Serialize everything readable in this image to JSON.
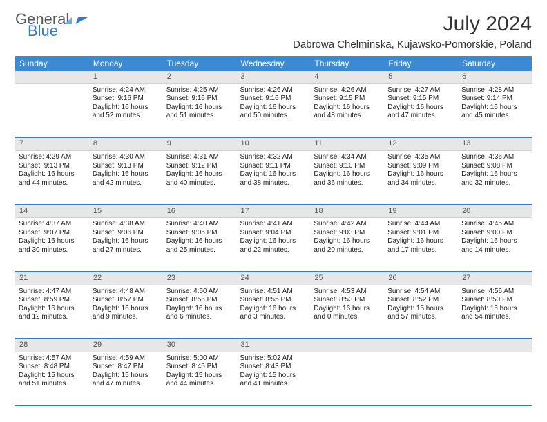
{
  "header": {
    "logo_general": "General",
    "logo_blue": "Blue",
    "month_title": "July 2024",
    "location": "Dabrowa Chelminska, Kujawsko-Pomorskie, Poland"
  },
  "colors": {
    "header_bg": "#3b8bd4",
    "divider": "#2e7cd6",
    "daynum_bg": "#e7e7e7",
    "text": "#222222"
  },
  "weekdays": [
    "Sunday",
    "Monday",
    "Tuesday",
    "Wednesday",
    "Thursday",
    "Friday",
    "Saturday"
  ],
  "weeks": [
    {
      "nums": [
        "",
        "1",
        "2",
        "3",
        "4",
        "5",
        "6"
      ],
      "cells": [
        "",
        "Sunrise: 4:24 AM\nSunset: 9:16 PM\nDaylight: 16 hours and 52 minutes.",
        "Sunrise: 4:25 AM\nSunset: 9:16 PM\nDaylight: 16 hours and 51 minutes.",
        "Sunrise: 4:26 AM\nSunset: 9:16 PM\nDaylight: 16 hours and 50 minutes.",
        "Sunrise: 4:26 AM\nSunset: 9:15 PM\nDaylight: 16 hours and 48 minutes.",
        "Sunrise: 4:27 AM\nSunset: 9:15 PM\nDaylight: 16 hours and 47 minutes.",
        "Sunrise: 4:28 AM\nSunset: 9:14 PM\nDaylight: 16 hours and 45 minutes."
      ]
    },
    {
      "nums": [
        "7",
        "8",
        "9",
        "10",
        "11",
        "12",
        "13"
      ],
      "cells": [
        "Sunrise: 4:29 AM\nSunset: 9:13 PM\nDaylight: 16 hours and 44 minutes.",
        "Sunrise: 4:30 AM\nSunset: 9:13 PM\nDaylight: 16 hours and 42 minutes.",
        "Sunrise: 4:31 AM\nSunset: 9:12 PM\nDaylight: 16 hours and 40 minutes.",
        "Sunrise: 4:32 AM\nSunset: 9:11 PM\nDaylight: 16 hours and 38 minutes.",
        "Sunrise: 4:34 AM\nSunset: 9:10 PM\nDaylight: 16 hours and 36 minutes.",
        "Sunrise: 4:35 AM\nSunset: 9:09 PM\nDaylight: 16 hours and 34 minutes.",
        "Sunrise: 4:36 AM\nSunset: 9:08 PM\nDaylight: 16 hours and 32 minutes."
      ]
    },
    {
      "nums": [
        "14",
        "15",
        "16",
        "17",
        "18",
        "19",
        "20"
      ],
      "cells": [
        "Sunrise: 4:37 AM\nSunset: 9:07 PM\nDaylight: 16 hours and 30 minutes.",
        "Sunrise: 4:38 AM\nSunset: 9:06 PM\nDaylight: 16 hours and 27 minutes.",
        "Sunrise: 4:40 AM\nSunset: 9:05 PM\nDaylight: 16 hours and 25 minutes.",
        "Sunrise: 4:41 AM\nSunset: 9:04 PM\nDaylight: 16 hours and 22 minutes.",
        "Sunrise: 4:42 AM\nSunset: 9:03 PM\nDaylight: 16 hours and 20 minutes.",
        "Sunrise: 4:44 AM\nSunset: 9:01 PM\nDaylight: 16 hours and 17 minutes.",
        "Sunrise: 4:45 AM\nSunset: 9:00 PM\nDaylight: 16 hours and 14 minutes."
      ]
    },
    {
      "nums": [
        "21",
        "22",
        "23",
        "24",
        "25",
        "26",
        "27"
      ],
      "cells": [
        "Sunrise: 4:47 AM\nSunset: 8:59 PM\nDaylight: 16 hours and 12 minutes.",
        "Sunrise: 4:48 AM\nSunset: 8:57 PM\nDaylight: 16 hours and 9 minutes.",
        "Sunrise: 4:50 AM\nSunset: 8:56 PM\nDaylight: 16 hours and 6 minutes.",
        "Sunrise: 4:51 AM\nSunset: 8:55 PM\nDaylight: 16 hours and 3 minutes.",
        "Sunrise: 4:53 AM\nSunset: 8:53 PM\nDaylight: 16 hours and 0 minutes.",
        "Sunrise: 4:54 AM\nSunset: 8:52 PM\nDaylight: 15 hours and 57 minutes.",
        "Sunrise: 4:56 AM\nSunset: 8:50 PM\nDaylight: 15 hours and 54 minutes."
      ]
    },
    {
      "nums": [
        "28",
        "29",
        "30",
        "31",
        "",
        "",
        ""
      ],
      "cells": [
        "Sunrise: 4:57 AM\nSunset: 8:48 PM\nDaylight: 15 hours and 51 minutes.",
        "Sunrise: 4:59 AM\nSunset: 8:47 PM\nDaylight: 15 hours and 47 minutes.",
        "Sunrise: 5:00 AM\nSunset: 8:45 PM\nDaylight: 15 hours and 44 minutes.",
        "Sunrise: 5:02 AM\nSunset: 8:43 PM\nDaylight: 15 hours and 41 minutes.",
        "",
        "",
        ""
      ]
    }
  ]
}
